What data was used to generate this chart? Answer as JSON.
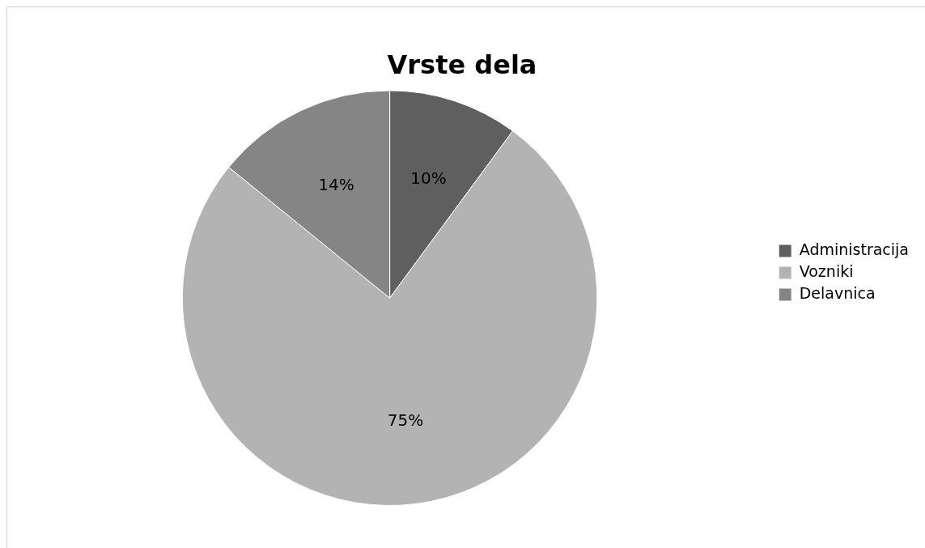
{
  "chart_data": {
    "type": "pie",
    "title": "Vrste dela",
    "categories": [
      "Administracija",
      "Vozniki",
      "Delavnica"
    ],
    "values": [
      10,
      75,
      14
    ],
    "colors": [
      "#5f5f5f",
      "#b3b3b3",
      "#858585"
    ],
    "value_labels": [
      "10%",
      "75%",
      "14%"
    ],
    "legend": "right"
  }
}
